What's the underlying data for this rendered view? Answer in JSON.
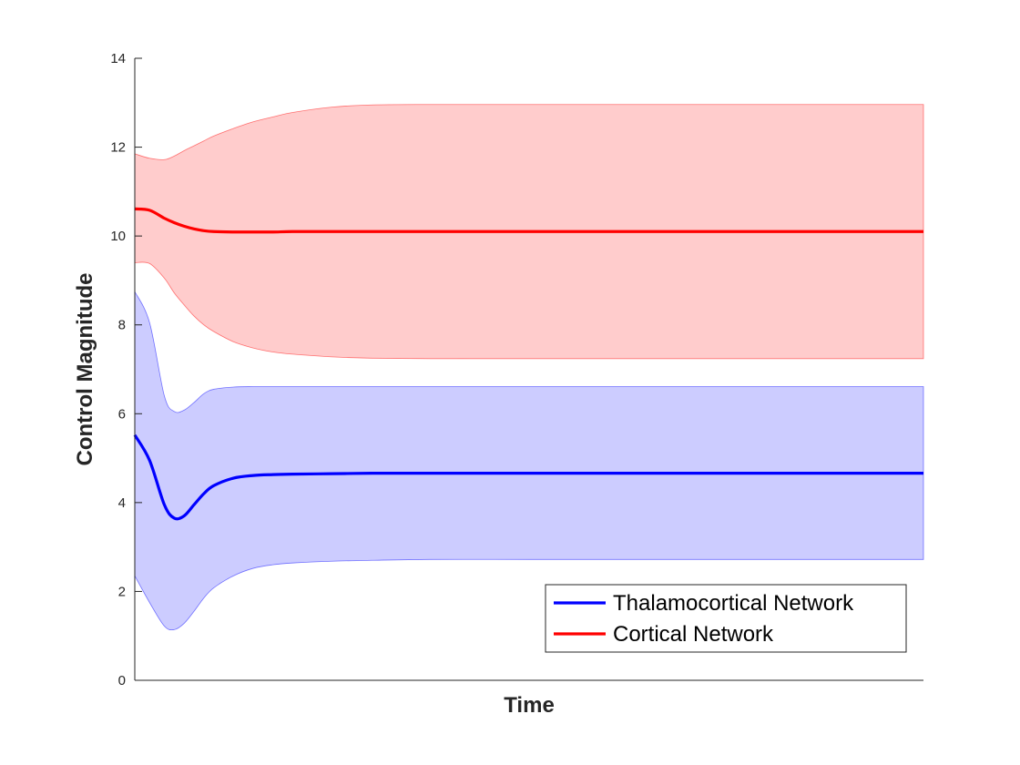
{
  "chart_data": {
    "type": "area",
    "title": "",
    "xlabel": "Time",
    "ylabel": "Control Magnitude",
    "ylim": [
      0,
      14
    ],
    "yticks": [
      0,
      2,
      4,
      6,
      8,
      10,
      12,
      14
    ],
    "xticks_visible": false,
    "grid": false,
    "legend_position": "bottom-right",
    "x": [
      0,
      0.75,
      1.5,
      2,
      2.5,
      3,
      3.5,
      4,
      5,
      6,
      7,
      8,
      10,
      12,
      15,
      20,
      25,
      30,
      40
    ],
    "series": [
      {
        "name": "Thalamocortical Network",
        "color": "#0000ff",
        "band_color": "#9999ff",
        "mean": [
          5.52,
          4.95,
          3.95,
          3.65,
          3.7,
          3.95,
          4.2,
          4.38,
          4.55,
          4.61,
          4.63,
          4.64,
          4.65,
          4.66,
          4.66,
          4.66,
          4.66,
          4.66,
          4.66
        ],
        "upper": [
          8.75,
          8.05,
          6.4,
          6.05,
          6.08,
          6.25,
          6.45,
          6.55,
          6.6,
          6.61,
          6.61,
          6.61,
          6.61,
          6.61,
          6.61,
          6.61,
          6.61,
          6.61,
          6.61
        ],
        "lower": [
          2.35,
          1.75,
          1.22,
          1.14,
          1.28,
          1.55,
          1.85,
          2.08,
          2.35,
          2.52,
          2.6,
          2.64,
          2.68,
          2.7,
          2.72,
          2.72,
          2.72,
          2.72,
          2.72
        ]
      },
      {
        "name": "Cortical Network",
        "color": "#ff0000",
        "band_color": "#ff9999",
        "mean": [
          10.61,
          10.58,
          10.4,
          10.3,
          10.22,
          10.16,
          10.12,
          10.1,
          10.09,
          10.09,
          10.09,
          10.1,
          10.1,
          10.1,
          10.1,
          10.1,
          10.1,
          10.1,
          10.1
        ],
        "upper": [
          11.85,
          11.75,
          11.72,
          11.8,
          11.92,
          12.03,
          12.14,
          12.25,
          12.42,
          12.57,
          12.68,
          12.78,
          12.9,
          12.95,
          12.96,
          12.96,
          12.96,
          12.96,
          12.96
        ],
        "lower": [
          9.4,
          9.38,
          9.05,
          8.72,
          8.45,
          8.2,
          8.0,
          7.85,
          7.62,
          7.48,
          7.39,
          7.34,
          7.28,
          7.25,
          7.24,
          7.24,
          7.24,
          7.24,
          7.24
        ]
      }
    ]
  }
}
